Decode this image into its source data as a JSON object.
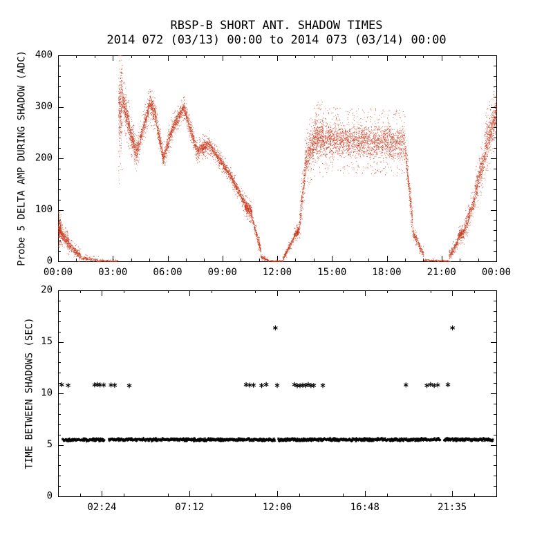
{
  "figure": {
    "title": "RBSP-B SHORT ANT. SHADOW TIMES",
    "subtitle": "2014 072 (03/13) 00:00 to 2014 073 (03/14) 00:00",
    "background": "#ffffff",
    "axis_color": "#000000"
  },
  "chart_data": [
    {
      "type": "scatter",
      "panel": "top",
      "marker": "dot",
      "color": "#c83c20",
      "ylabel": "Probe 5 DELTA AMP DURING SHADOW (ADC)",
      "xlim": [
        0,
        24
      ],
      "ylim": [
        0,
        400
      ],
      "xticks": {
        "values": [
          0,
          3,
          6,
          9,
          12,
          15,
          18,
          21,
          24
        ],
        "labels": [
          "00:00",
          "03:00",
          "06:00",
          "09:00",
          "12:00",
          "15:00",
          "18:00",
          "21:00",
          "00:00"
        ]
      },
      "yticks": {
        "values": [
          0,
          100,
          200,
          300,
          400
        ],
        "labels": [
          "0",
          "100",
          "200",
          "300",
          "400"
        ]
      },
      "grid": false,
      "series_desc": "Probe 5 delta amplitude (ADC counts) vs UT hours, dense red dot scatter; values below approximate the visible envelope: time range [h], center value [ADC], half-spread, point count",
      "bands": [
        {
          "t": [
            0.0,
            0.15
          ],
          "v": [
            62,
            62
          ],
          "spread": 18,
          "n": 240
        },
        {
          "t": [
            0.15,
            0.6
          ],
          "v": [
            55,
            34
          ],
          "spread": 12,
          "n": 300
        },
        {
          "t": [
            0.6,
            1.2
          ],
          "v": [
            30,
            12
          ],
          "spread": 8,
          "n": 240
        },
        {
          "t": [
            1.2,
            2.2
          ],
          "v": [
            8,
            2
          ],
          "spread": 4,
          "n": 150
        },
        {
          "t": [
            2.2,
            3.25
          ],
          "v": [
            1,
            1
          ],
          "spread": 2,
          "n": 120
        },
        {
          "t": [
            3.3,
            3.5
          ],
          "v": [
            290,
            310
          ],
          "spread": 75,
          "n": 300
        },
        {
          "t": [
            3.5,
            3.9
          ],
          "v": [
            318,
            258
          ],
          "spread": 26,
          "n": 350
        },
        {
          "t": [
            3.9,
            4.3
          ],
          "v": [
            255,
            208
          ],
          "spread": 20,
          "n": 300
        },
        {
          "t": [
            4.3,
            5.0
          ],
          "v": [
            212,
            305
          ],
          "spread": 18,
          "n": 420
        },
        {
          "t": [
            5.0,
            5.3
          ],
          "v": [
            305,
            288
          ],
          "spread": 20,
          "n": 220
        },
        {
          "t": [
            5.3,
            5.75
          ],
          "v": [
            285,
            198
          ],
          "spread": 15,
          "n": 300
        },
        {
          "t": [
            5.75,
            6.3
          ],
          "v": [
            200,
            265
          ],
          "spread": 15,
          "n": 330
        },
        {
          "t": [
            6.3,
            6.9
          ],
          "v": [
            265,
            300
          ],
          "spread": 13,
          "n": 330
        },
        {
          "t": [
            6.9,
            7.6
          ],
          "v": [
            296,
            214
          ],
          "spread": 12,
          "n": 380
        },
        {
          "t": [
            7.6,
            8.3
          ],
          "v": [
            214,
            230
          ],
          "spread": 14,
          "n": 380
        },
        {
          "t": [
            8.3,
            9.3
          ],
          "v": [
            226,
            174
          ],
          "spread": 10,
          "n": 450
        },
        {
          "t": [
            9.3,
            10.2
          ],
          "v": [
            174,
            114
          ],
          "spread": 10,
          "n": 420
        },
        {
          "t": [
            10.2,
            10.6
          ],
          "v": [
            110,
            95
          ],
          "spread": 12,
          "n": 330
        },
        {
          "t": [
            10.6,
            11.1
          ],
          "v": [
            86,
            20
          ],
          "spread": 8,
          "n": 220
        },
        {
          "t": [
            11.1,
            11.5
          ],
          "v": [
            9,
            2
          ],
          "spread": 3,
          "n": 100
        },
        {
          "t": [
            11.5,
            12.3
          ],
          "v": [
            1,
            1
          ],
          "spread": 1.5,
          "n": 100
        },
        {
          "t": [
            12.3,
            12.9
          ],
          "v": [
            6,
            45
          ],
          "spread": 6,
          "n": 220
        },
        {
          "t": [
            12.9,
            13.2
          ],
          "v": [
            50,
            62
          ],
          "spread": 8,
          "n": 200
        },
        {
          "t": [
            13.2,
            13.5
          ],
          "v": [
            72,
            172
          ],
          "spread": 26,
          "n": 200
        },
        {
          "t": [
            13.5,
            14.0
          ],
          "v": [
            190,
            236
          ],
          "spread": 34,
          "n": 350
        },
        {
          "t": [
            14.0,
            14.5
          ],
          "v": [
            240,
            240
          ],
          "spread": 40,
          "n": 400
        },
        {
          "t": [
            14.5,
            19.0
          ],
          "v": [
            236,
            230
          ],
          "spread": 34,
          "n": 2300
        },
        {
          "t": [
            19.0,
            19.4
          ],
          "v": [
            214,
            78
          ],
          "spread": 20,
          "n": 280
        },
        {
          "t": [
            19.4,
            20.0
          ],
          "v": [
            58,
            14
          ],
          "spread": 8,
          "n": 200
        },
        {
          "t": [
            20.0,
            21.4
          ],
          "v": [
            3,
            1
          ],
          "spread": 2,
          "n": 150
        },
        {
          "t": [
            21.4,
            21.9
          ],
          "v": [
            10,
            40
          ],
          "spread": 8,
          "n": 200
        },
        {
          "t": [
            21.9,
            22.2
          ],
          "v": [
            50,
            56
          ],
          "spread": 10,
          "n": 220
        },
        {
          "t": [
            22.2,
            22.8
          ],
          "v": [
            60,
            120
          ],
          "spread": 16,
          "n": 300
        },
        {
          "t": [
            22.8,
            23.4
          ],
          "v": [
            130,
            210
          ],
          "spread": 26,
          "n": 380
        },
        {
          "t": [
            23.4,
            24.0
          ],
          "v": [
            222,
            292
          ],
          "spread": 34,
          "n": 450
        }
      ]
    },
    {
      "type": "scatter",
      "panel": "bottom",
      "marker": "asterisk",
      "color": "#000000",
      "ylabel": "TIME BETWEEN SHADOWS (SEC)",
      "xlim": [
        0,
        24
      ],
      "ylim": [
        0,
        20
      ],
      "xticks": {
        "values": [
          2.4,
          7.2,
          12.0,
          16.8,
          21.583
        ],
        "labels": [
          "02:24",
          "07:12",
          "12:00",
          "16:48",
          "21:35"
        ]
      },
      "yticks": {
        "values": [
          0,
          5,
          10,
          15,
          20
        ],
        "labels": [
          "0",
          "5",
          "10",
          "15",
          "20"
        ]
      },
      "grid": false,
      "band_y": 5.5,
      "band_segments_hours": [
        [
          0.25,
          2.52
        ],
        [
          2.78,
          11.88
        ],
        [
          12.06,
          20.92
        ],
        [
          21.14,
          23.82
        ]
      ],
      "mid_y": 10.8,
      "mid_points_hours": [
        0.2,
        0.55,
        2.0,
        2.15,
        2.3,
        2.5,
        2.9,
        3.1,
        3.9,
        10.3,
        10.5,
        10.7,
        11.15,
        11.4,
        12.0,
        12.95,
        13.1,
        13.25,
        13.4,
        13.55,
        13.7,
        13.85,
        14.0,
        14.5,
        19.05,
        20.2,
        20.4,
        20.6,
        20.8,
        21.35
      ],
      "high_y": 16.35,
      "high_points_hours": [
        11.9,
        21.6
      ]
    }
  ]
}
